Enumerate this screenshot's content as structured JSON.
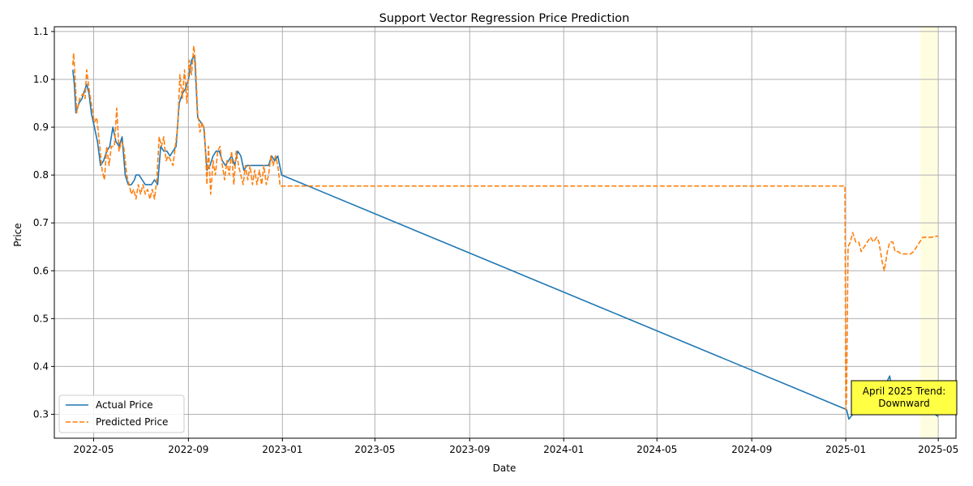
{
  "chart_data": {
    "type": "line",
    "title": "Support Vector Regression Price Prediction",
    "xlabel": "Date",
    "ylabel": "Price",
    "xlim": [
      "2022-03-11",
      "2025-05-24"
    ],
    "ylim": [
      0.25,
      1.11
    ],
    "x_ticks": [
      "2022-05",
      "2022-09",
      "2023-01",
      "2023-05",
      "2023-09",
      "2024-01",
      "2024-05",
      "2024-09",
      "2025-01",
      "2025-05"
    ],
    "y_ticks": [
      0.3,
      0.4,
      0.5,
      0.6,
      0.7,
      0.8,
      0.9,
      1.0,
      1.1
    ],
    "grid": true,
    "legend_position": "lower-left",
    "highlight_span": {
      "start": "2025-04-08",
      "end": "2025-05-01",
      "color": "#fffde0"
    },
    "annotation": {
      "line1": "April 2025 Trend:",
      "line2": "Downward",
      "background": "#ffff44"
    },
    "colors": {
      "actual": "#1f77b4",
      "predicted": "#ff7f0e"
    },
    "series": [
      {
        "name": "Actual Price",
        "style": "solid",
        "points": [
          [
            "2022-04-04",
            1.02
          ],
          [
            "2022-04-06",
            0.99
          ],
          [
            "2022-04-08",
            0.93
          ],
          [
            "2022-04-12",
            0.95
          ],
          [
            "2022-04-16",
            0.96
          ],
          [
            "2022-04-20",
            0.98
          ],
          [
            "2022-04-22",
            0.99
          ],
          [
            "2022-04-25",
            0.97
          ],
          [
            "2022-04-28",
            0.93
          ],
          [
            "2022-05-02",
            0.9
          ],
          [
            "2022-05-06",
            0.87
          ],
          [
            "2022-05-10",
            0.82
          ],
          [
            "2022-05-14",
            0.83
          ],
          [
            "2022-05-18",
            0.85
          ],
          [
            "2022-05-22",
            0.86
          ],
          [
            "2022-05-26",
            0.9
          ],
          [
            "2022-05-30",
            0.87
          ],
          [
            "2022-06-03",
            0.86
          ],
          [
            "2022-06-07",
            0.88
          ],
          [
            "2022-06-11",
            0.8
          ],
          [
            "2022-06-15",
            0.78
          ],
          [
            "2022-06-19",
            0.78
          ],
          [
            "2022-06-23",
            0.79
          ],
          [
            "2022-06-25",
            0.8
          ],
          [
            "2022-06-29",
            0.8
          ],
          [
            "2022-07-03",
            0.79
          ],
          [
            "2022-07-07",
            0.78
          ],
          [
            "2022-07-11",
            0.78
          ],
          [
            "2022-07-15",
            0.78
          ],
          [
            "2022-07-19",
            0.79
          ],
          [
            "2022-07-23",
            0.78
          ],
          [
            "2022-07-27",
            0.86
          ],
          [
            "2022-07-31",
            0.85
          ],
          [
            "2022-08-04",
            0.85
          ],
          [
            "2022-08-08",
            0.84
          ],
          [
            "2022-08-12",
            0.85
          ],
          [
            "2022-08-16",
            0.86
          ],
          [
            "2022-08-20",
            0.95
          ],
          [
            "2022-08-24",
            0.97
          ],
          [
            "2022-08-28",
            0.98
          ],
          [
            "2022-09-01",
            1.0
          ],
          [
            "2022-09-05",
            1.04
          ],
          [
            "2022-09-09",
            1.05
          ],
          [
            "2022-09-13",
            0.92
          ],
          [
            "2022-09-17",
            0.91
          ],
          [
            "2022-09-21",
            0.9
          ],
          [
            "2022-09-25",
            0.81
          ],
          [
            "2022-09-29",
            0.82
          ],
          [
            "2022-10-03",
            0.84
          ],
          [
            "2022-10-07",
            0.85
          ],
          [
            "2022-10-11",
            0.85
          ],
          [
            "2022-10-15",
            0.83
          ],
          [
            "2022-10-19",
            0.82
          ],
          [
            "2022-10-23",
            0.83
          ],
          [
            "2022-10-27",
            0.84
          ],
          [
            "2022-10-31",
            0.82
          ],
          [
            "2022-11-04",
            0.85
          ],
          [
            "2022-11-08",
            0.84
          ],
          [
            "2022-11-12",
            0.81
          ],
          [
            "2022-11-16",
            0.82
          ],
          [
            "2022-11-20",
            0.82
          ],
          [
            "2022-11-24",
            0.82
          ],
          [
            "2022-11-28",
            0.82
          ],
          [
            "2022-12-02",
            0.82
          ],
          [
            "2022-12-06",
            0.82
          ],
          [
            "2022-12-10",
            0.82
          ],
          [
            "2022-12-14",
            0.82
          ],
          [
            "2022-12-18",
            0.84
          ],
          [
            "2022-12-22",
            0.83
          ],
          [
            "2022-12-26",
            0.84
          ],
          [
            "2022-12-31",
            0.8
          ],
          [
            "2025-01-02",
            0.31
          ],
          [
            "2025-01-05",
            0.29
          ],
          [
            "2025-01-10",
            0.3
          ],
          [
            "2025-01-14",
            0.32
          ],
          [
            "2025-01-17",
            0.31
          ],
          [
            "2025-01-21",
            0.34
          ],
          [
            "2025-01-24",
            0.31
          ],
          [
            "2025-01-27",
            0.32
          ],
          [
            "2025-02-01",
            0.3
          ],
          [
            "2025-02-06",
            0.31
          ],
          [
            "2025-02-10",
            0.32
          ],
          [
            "2025-02-13",
            0.3
          ],
          [
            "2025-02-17",
            0.31
          ],
          [
            "2025-02-21",
            0.3
          ],
          [
            "2025-02-24",
            0.37
          ],
          [
            "2025-02-27",
            0.38
          ],
          [
            "2025-03-02",
            0.35
          ],
          [
            "2025-03-06",
            0.32
          ],
          [
            "2025-03-10",
            0.33
          ],
          [
            "2025-03-14",
            0.32
          ],
          [
            "2025-03-18",
            0.31
          ],
          [
            "2025-03-22",
            0.31
          ],
          [
            "2025-03-26",
            0.31
          ],
          [
            "2025-03-30",
            0.3
          ],
          [
            "2025-04-03",
            0.31
          ],
          [
            "2025-04-07",
            0.3
          ],
          [
            "2025-04-11",
            0.3
          ],
          [
            "2025-04-15",
            0.3
          ],
          [
            "2025-04-19",
            0.3
          ],
          [
            "2025-04-23",
            0.3
          ],
          [
            "2025-04-27",
            0.3
          ],
          [
            "2025-05-01",
            0.295
          ]
        ]
      },
      {
        "name": "Predicted Price",
        "style": "dashed",
        "points": [
          [
            "2022-04-04",
            1.03
          ],
          [
            "2022-04-05",
            1.055
          ],
          [
            "2022-04-07",
            1.0
          ],
          [
            "2022-04-09",
            0.93
          ],
          [
            "2022-04-13",
            0.96
          ],
          [
            "2022-04-17",
            0.97
          ],
          [
            "2022-04-20",
            0.96
          ],
          [
            "2022-04-22",
            1.02
          ],
          [
            "2022-04-25",
            0.98
          ],
          [
            "2022-04-28",
            0.95
          ],
          [
            "2022-05-02",
            0.91
          ],
          [
            "2022-05-05",
            0.92
          ],
          [
            "2022-05-09",
            0.86
          ],
          [
            "2022-05-12",
            0.81
          ],
          [
            "2022-05-15",
            0.79
          ],
          [
            "2022-05-18",
            0.86
          ],
          [
            "2022-05-21",
            0.82
          ],
          [
            "2022-05-24",
            0.86
          ],
          [
            "2022-05-28",
            0.86
          ],
          [
            "2022-05-31",
            0.94
          ],
          [
            "2022-06-03",
            0.85
          ],
          [
            "2022-06-06",
            0.87
          ],
          [
            "2022-06-09",
            0.86
          ],
          [
            "2022-06-13",
            0.8
          ],
          [
            "2022-06-16",
            0.78
          ],
          [
            "2022-06-19",
            0.76
          ],
          [
            "2022-06-22",
            0.77
          ],
          [
            "2022-06-25",
            0.75
          ],
          [
            "2022-06-28",
            0.78
          ],
          [
            "2022-07-01",
            0.76
          ],
          [
            "2022-07-04",
            0.78
          ],
          [
            "2022-07-07",
            0.76
          ],
          [
            "2022-07-10",
            0.77
          ],
          [
            "2022-07-13",
            0.75
          ],
          [
            "2022-07-16",
            0.77
          ],
          [
            "2022-07-19",
            0.75
          ],
          [
            "2022-07-22",
            0.79
          ],
          [
            "2022-07-25",
            0.88
          ],
          [
            "2022-07-28",
            0.86
          ],
          [
            "2022-07-31",
            0.88
          ],
          [
            "2022-08-03",
            0.83
          ],
          [
            "2022-08-06",
            0.84
          ],
          [
            "2022-08-09",
            0.83
          ],
          [
            "2022-08-12",
            0.82
          ],
          [
            "2022-08-15",
            0.86
          ],
          [
            "2022-08-18",
            0.9
          ],
          [
            "2022-08-21",
            1.01
          ],
          [
            "2022-08-24",
            0.96
          ],
          [
            "2022-08-27",
            1.02
          ],
          [
            "2022-08-30",
            0.95
          ],
          [
            "2022-09-02",
            1.04
          ],
          [
            "2022-09-05",
            1.01
          ],
          [
            "2022-09-08",
            1.07
          ],
          [
            "2022-09-10",
            1.04
          ],
          [
            "2022-09-13",
            0.93
          ],
          [
            "2022-09-16",
            0.89
          ],
          [
            "2022-09-19",
            0.91
          ],
          [
            "2022-09-22",
            0.89
          ],
          [
            "2022-09-25",
            0.78
          ],
          [
            "2022-09-27",
            0.86
          ],
          [
            "2022-09-30",
            0.76
          ],
          [
            "2022-10-03",
            0.83
          ],
          [
            "2022-10-06",
            0.8
          ],
          [
            "2022-10-09",
            0.85
          ],
          [
            "2022-10-12",
            0.86
          ],
          [
            "2022-10-15",
            0.82
          ],
          [
            "2022-10-18",
            0.79
          ],
          [
            "2022-10-21",
            0.83
          ],
          [
            "2022-10-24",
            0.8
          ],
          [
            "2022-10-27",
            0.85
          ],
          [
            "2022-10-30",
            0.78
          ],
          [
            "2022-11-02",
            0.85
          ],
          [
            "2022-11-05",
            0.82
          ],
          [
            "2022-11-08",
            0.8
          ],
          [
            "2022-11-11",
            0.78
          ],
          [
            "2022-11-14",
            0.82
          ],
          [
            "2022-11-17",
            0.79
          ],
          [
            "2022-11-20",
            0.82
          ],
          [
            "2022-11-23",
            0.78
          ],
          [
            "2022-11-26",
            0.81
          ],
          [
            "2022-11-29",
            0.78
          ],
          [
            "2022-12-02",
            0.81
          ],
          [
            "2022-12-05",
            0.78
          ],
          [
            "2022-12-08",
            0.82
          ],
          [
            "2022-12-11",
            0.78
          ],
          [
            "2022-12-14",
            0.8
          ],
          [
            "2022-12-17",
            0.84
          ],
          [
            "2022-12-20",
            0.82
          ],
          [
            "2022-12-23",
            0.84
          ],
          [
            "2022-12-26",
            0.82
          ],
          [
            "2022-12-29",
            0.777
          ],
          [
            "2024-12-31",
            0.777
          ],
          [
            "2025-01-01",
            0.31
          ],
          [
            "2025-01-02",
            0.33
          ],
          [
            "2025-01-04",
            0.65
          ],
          [
            "2025-01-07",
            0.66
          ],
          [
            "2025-01-10",
            0.68
          ],
          [
            "2025-01-14",
            0.66
          ],
          [
            "2025-01-18",
            0.66
          ],
          [
            "2025-01-21",
            0.64
          ],
          [
            "2025-01-25",
            0.65
          ],
          [
            "2025-01-29",
            0.66
          ],
          [
            "2025-02-02",
            0.67
          ],
          [
            "2025-02-06",
            0.66
          ],
          [
            "2025-02-10",
            0.67
          ],
          [
            "2025-02-13",
            0.66
          ],
          [
            "2025-02-17",
            0.62
          ],
          [
            "2025-02-20",
            0.6
          ],
          [
            "2025-02-24",
            0.64
          ],
          [
            "2025-02-27",
            0.66
          ],
          [
            "2025-03-03",
            0.66
          ],
          [
            "2025-03-06",
            0.64
          ],
          [
            "2025-03-10",
            0.64
          ],
          [
            "2025-03-14",
            0.635
          ],
          [
            "2025-03-18",
            0.635
          ],
          [
            "2025-03-22",
            0.635
          ],
          [
            "2025-03-26",
            0.635
          ],
          [
            "2025-03-30",
            0.64
          ],
          [
            "2025-04-03",
            0.65
          ],
          [
            "2025-04-07",
            0.66
          ],
          [
            "2025-04-11",
            0.67
          ],
          [
            "2025-04-15",
            0.67
          ],
          [
            "2025-04-19",
            0.67
          ],
          [
            "2025-04-23",
            0.67
          ],
          [
            "2025-04-27",
            0.672
          ],
          [
            "2025-05-01",
            0.672
          ]
        ]
      }
    ]
  }
}
